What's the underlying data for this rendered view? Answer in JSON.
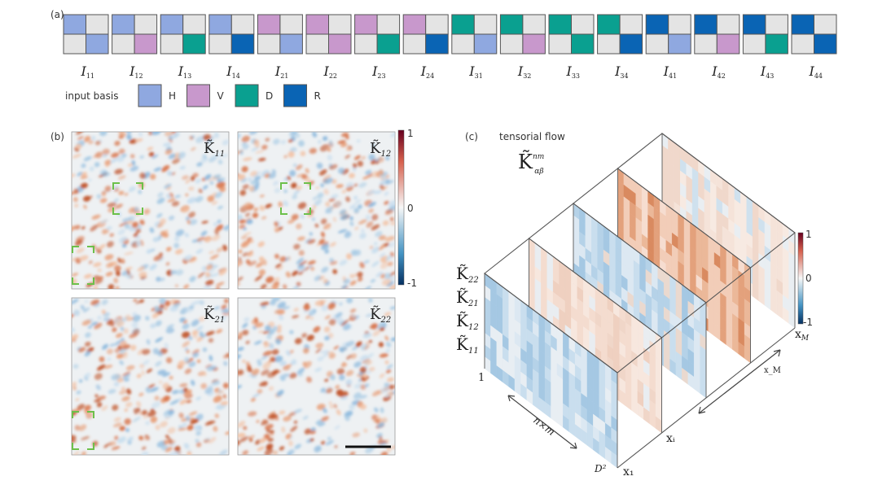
{
  "panel_a": {
    "label": "(a)",
    "legend_title": "input basis",
    "basis": [
      {
        "key": "H",
        "color": "#8FA8E0"
      },
      {
        "key": "V",
        "color": "#C898CC"
      },
      {
        "key": "D",
        "color": "#0AA090"
      },
      {
        "key": "R",
        "color": "#0A64B4"
      }
    ],
    "empty_color": "#E4E4E4",
    "tiles": [
      {
        "symbol": "I",
        "sub": "11",
        "top": 0,
        "bottom": 0
      },
      {
        "symbol": "I",
        "sub": "12",
        "top": 0,
        "bottom": 1
      },
      {
        "symbol": "I",
        "sub": "13",
        "top": 0,
        "bottom": 2
      },
      {
        "symbol": "I",
        "sub": "14",
        "top": 0,
        "bottom": 3
      },
      {
        "symbol": "I",
        "sub": "21",
        "top": 1,
        "bottom": 0
      },
      {
        "symbol": "I",
        "sub": "22",
        "top": 1,
        "bottom": 1
      },
      {
        "symbol": "I",
        "sub": "23",
        "top": 1,
        "bottom": 2
      },
      {
        "symbol": "I",
        "sub": "24",
        "top": 1,
        "bottom": 3
      },
      {
        "symbol": "I",
        "sub": "31",
        "top": 2,
        "bottom": 0
      },
      {
        "symbol": "I",
        "sub": "32",
        "top": 2,
        "bottom": 1
      },
      {
        "symbol": "I",
        "sub": "33",
        "top": 2,
        "bottom": 2
      },
      {
        "symbol": "I",
        "sub": "34",
        "top": 2,
        "bottom": 3
      },
      {
        "symbol": "I",
        "sub": "41",
        "top": 3,
        "bottom": 0
      },
      {
        "symbol": "I",
        "sub": "42",
        "top": 3,
        "bottom": 1
      },
      {
        "symbol": "I",
        "sub": "43",
        "top": 3,
        "bottom": 2
      },
      {
        "symbol": "I",
        "sub": "44",
        "top": 3,
        "bottom": 3
      }
    ]
  },
  "panel_b": {
    "label": "(b)",
    "maps": [
      {
        "symbol": "K̃",
        "sub": "11"
      },
      {
        "symbol": "K̃",
        "sub": "12"
      },
      {
        "symbol": "K̃",
        "sub": "21"
      },
      {
        "symbol": "K̃",
        "sub": "22"
      }
    ],
    "colorbar": {
      "max": "1",
      "mid": "0",
      "min": "-1",
      "colors": [
        "#B2182B",
        "#F7F7F7",
        "#2166AC"
      ]
    }
  },
  "panel_c": {
    "label": "(c)",
    "title": "tensorial flow",
    "symbol": "K̃",
    "symbol_sup": "nm",
    "symbol_sub": "αβ",
    "row_labels": [
      {
        "symbol": "K̃",
        "sub": "22"
      },
      {
        "symbol": "K̃",
        "sub": "21"
      },
      {
        "symbol": "K̃",
        "sub": "12"
      },
      {
        "symbol": "K̃",
        "sub": "11"
      }
    ],
    "axis_start": "1",
    "axis_end": "D²",
    "axis_label": "n×m",
    "x_first": "x₁",
    "x_i": "xᵢ",
    "x_last": "x_M",
    "x_last_main": "x",
    "x_last_sub": "M",
    "colorbar": {
      "max": "1",
      "mid": "0",
      "min": "-1"
    }
  }
}
